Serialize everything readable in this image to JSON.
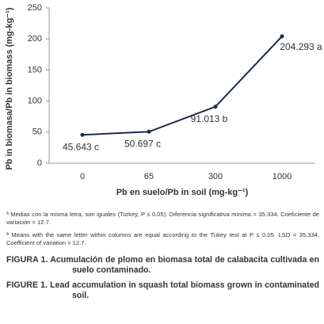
{
  "chart_data": {
    "type": "line",
    "categories": [
      "0",
      "65",
      "300",
      "1000"
    ],
    "values": [
      45.643,
      50.697,
      91.013,
      204.293
    ],
    "value_labels": [
      "45.643 c",
      "50.697 c",
      "91.013 b",
      "204.293 a"
    ],
    "color": "#1f2a4a",
    "ylim": [
      0,
      250
    ],
    "yticks": [
      0,
      50,
      100,
      150,
      200,
      250
    ],
    "grid": false,
    "x_label": "Pb en suelo/Pb in soil (mg-kg⁻¹)",
    "y_label": "Pb in biomasa/Pb in biomass (mg-kg⁻¹)",
    "footnotes": [
      "ª Medias con la misma letra, son iguales (Turkey, P ≤ 0.05). Diferencia significativa mínima = 35.334. Coeficiente de variación = 12.7.",
      "ª Means with the same letter within columns are equal according to the Tukey test at P ≤ 0.05. LSD = 35.334. Coefficient of variation = 12.7."
    ],
    "caption_es": "FIGURA 1. Acumulación de plomo en biomasa total de calabacita cultivada en suelo contaminado.",
    "caption_en": "FIGURE 1. Lead accumulation in squash total biomass grown in contaminated soil."
  }
}
